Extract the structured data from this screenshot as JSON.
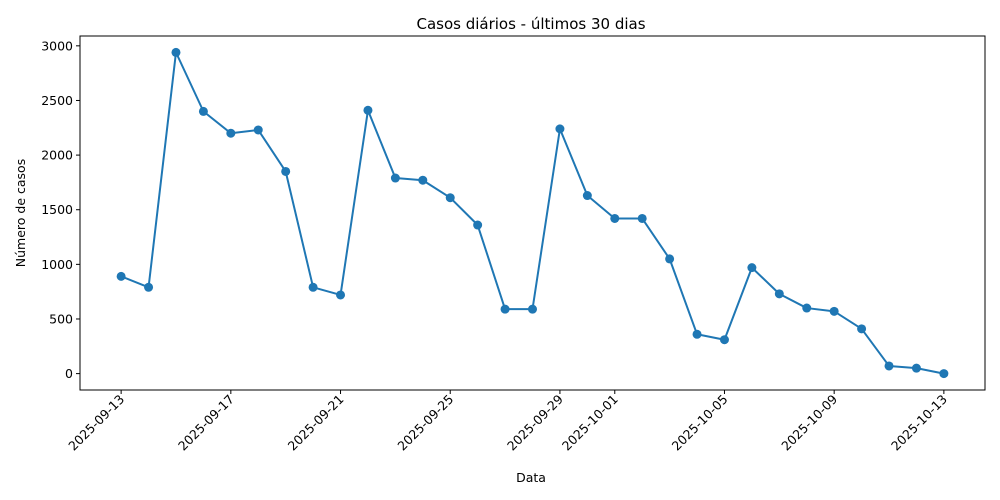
{
  "chart_data": {
    "type": "line",
    "title": "Casos diários - últimos 30 dias",
    "xlabel": "Data",
    "ylabel": "Número de casos",
    "x": [
      "2025-09-13",
      "2025-09-14",
      "2025-09-15",
      "2025-09-16",
      "2025-09-17",
      "2025-09-18",
      "2025-09-19",
      "2025-09-20",
      "2025-09-21",
      "2025-09-22",
      "2025-09-23",
      "2025-09-24",
      "2025-09-25",
      "2025-09-26",
      "2025-09-27",
      "2025-09-28",
      "2025-09-29",
      "2025-09-30",
      "2025-10-01",
      "2025-10-02",
      "2025-10-03",
      "2025-10-04",
      "2025-10-05",
      "2025-10-06",
      "2025-10-07",
      "2025-10-08",
      "2025-10-09",
      "2025-10-10",
      "2025-10-11",
      "2025-10-12",
      "2025-10-13"
    ],
    "series": [
      {
        "values": [
          890,
          790,
          2940,
          2400,
          2200,
          2230,
          1850,
          790,
          720,
          2410,
          1790,
          1770,
          1610,
          1360,
          590,
          590,
          2240,
          1630,
          1420,
          1420,
          1050,
          360,
          310,
          970,
          730,
          600,
          570,
          410,
          70,
          50,
          0
        ]
      }
    ],
    "x_ticks": [
      "2025-09-13",
      "2025-09-17",
      "2025-09-21",
      "2025-09-25",
      "2025-09-29",
      "2025-10-01",
      "2025-10-05",
      "2025-10-09",
      "2025-10-13"
    ],
    "y_ticks": [
      0,
      500,
      1000,
      1500,
      2000,
      2500,
      3000
    ],
    "ylim": [
      -150,
      3090
    ],
    "grid": false,
    "legend": "none",
    "color": "#1f77b4"
  }
}
